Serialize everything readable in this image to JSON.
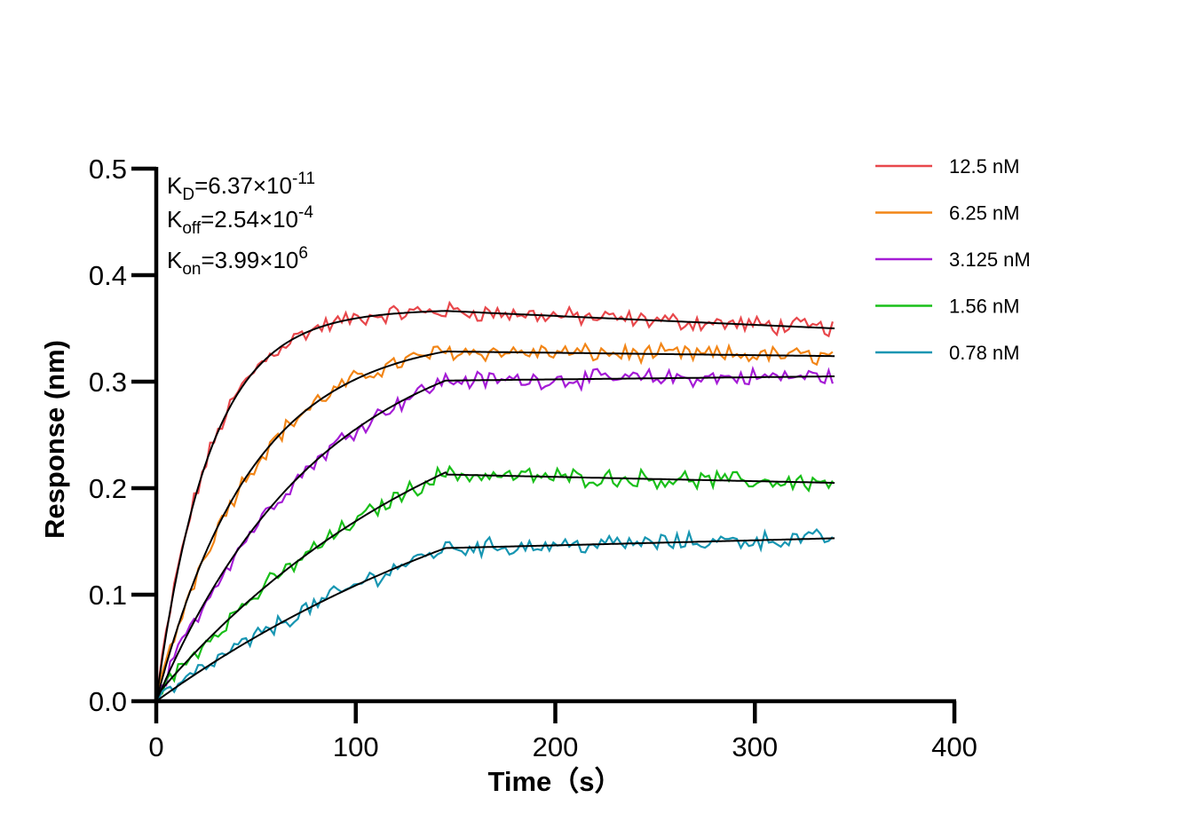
{
  "chart_data": {
    "type": "line",
    "xlabel": "Time（s）",
    "ylabel": "Response (nm)",
    "xlim": [
      0,
      400
    ],
    "ylim": [
      0,
      0.5
    ],
    "x_ticks": [
      "0",
      "100",
      "200",
      "300",
      "400"
    ],
    "y_ticks": [
      "0.0",
      "0.1",
      "0.2",
      "0.3",
      "0.4",
      "0.5"
    ],
    "grid": false,
    "legend_position": "top-right",
    "association_end": 145,
    "dissociation_end": 340,
    "fit_color": "#000000",
    "kinetics": {
      "kd_sym": "K",
      "kd_sub": "D",
      "kd_val": "=6.37×10",
      "kd_exp": "-11",
      "koff_sym": "K",
      "koff_sub": "off",
      "koff_val": "=2.54×10",
      "koff_exp": "-4",
      "kon_sym": "K",
      "kon_sub": "on",
      "kon_val": "=3.99×10",
      "kon_exp": "6"
    },
    "series": [
      {
        "name": "12.5 nM",
        "color": "#e8474b",
        "plateau": 0.368,
        "kobs": 0.0376,
        "end": 0.35,
        "start_y": 0.0
      },
      {
        "name": "6.25 nM",
        "color": "#f28516",
        "plateau": 0.345,
        "kobs": 0.0209,
        "end": 0.324,
        "start_y": 0.0
      },
      {
        "name": "3.125 nM",
        "color": "#a51cd6",
        "plateau": 0.364,
        "kobs": 0.0121,
        "end": 0.305,
        "start_y": 0.0
      },
      {
        "name": "1.56 nM",
        "color": "#19bf19",
        "plateau": 0.352,
        "kobs": 0.0064,
        "end": 0.205,
        "start_y": 0.005
      },
      {
        "name": "0.78 nM",
        "color": "#1796b2",
        "plateau": 0.3,
        "kobs": 0.0045,
        "end": 0.153,
        "start_y": 0.0
      }
    ]
  }
}
